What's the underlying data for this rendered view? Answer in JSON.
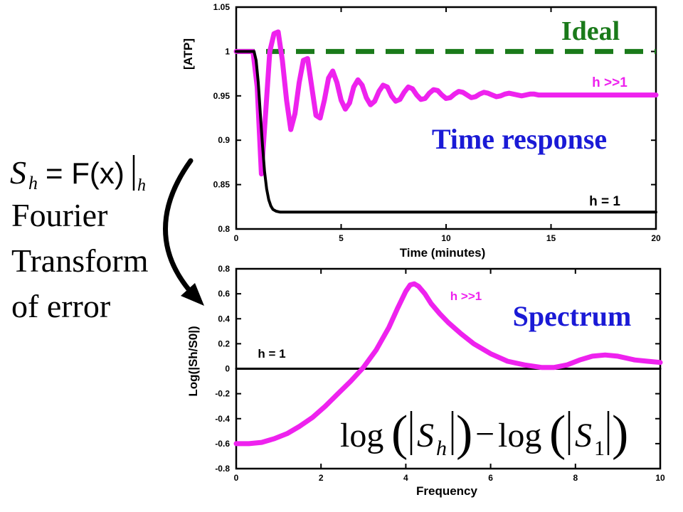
{
  "left_panel": {
    "formula": {
      "lhs": "S",
      "lhs_sub": "h",
      "rhs": "= F(x)",
      "bar_sub": "h"
    },
    "caption_lines": [
      "Fourier",
      "Transform",
      "of error"
    ]
  },
  "chart_data": [
    {
      "type": "line",
      "xlabel": "Time (minutes)",
      "ylabel": "[ATP]",
      "xlim": [
        0,
        20
      ],
      "ylim": [
        0.8,
        1.05
      ],
      "xticks": [
        "0",
        "5",
        "10",
        "15",
        "20"
      ],
      "yticks": [
        "0.8",
        "0.85",
        "0.9",
        "0.95",
        "1",
        "1.05"
      ],
      "grid": false,
      "annotations": {
        "ideal": "Ideal",
        "title": "Time response",
        "high_label": "h >>1",
        "low_label": "h = 1"
      },
      "series": [
        {
          "name": "Ideal",
          "color": "#1a7a1a",
          "style": "dashed",
          "x": [
            0,
            20
          ],
          "y": [
            1,
            1
          ]
        },
        {
          "name": "h >>1",
          "color": "#ee22ee",
          "style": "solid",
          "x": [
            0,
            0.8,
            1.0,
            1.2,
            1.4,
            1.6,
            1.8,
            2.0,
            2.2,
            2.4,
            2.6,
            2.8,
            3.0,
            3.2,
            3.4,
            3.6,
            3.8,
            4.0,
            4.2,
            4.4,
            4.6,
            4.8,
            5.0,
            5.2,
            5.4,
            5.6,
            5.8,
            6.0,
            6.2,
            6.4,
            6.6,
            6.8,
            7.0,
            7.2,
            7.4,
            7.6,
            7.8,
            8.0,
            8.2,
            8.4,
            8.6,
            8.8,
            9.0,
            9.2,
            9.4,
            9.6,
            9.8,
            10.0,
            10.2,
            10.4,
            10.6,
            10.8,
            11.0,
            11.2,
            11.4,
            11.6,
            11.8,
            12.0,
            12.2,
            12.4,
            12.6,
            12.8,
            13.0,
            13.2,
            13.4,
            13.6,
            13.8,
            14.0,
            14.2,
            14.4,
            14.6,
            14.8,
            15.0,
            16.0,
            17.0,
            18.0,
            19.0,
            20.0
          ],
          "y": [
            1.0,
            1.0,
            0.96,
            0.862,
            0.93,
            1.0,
            1.02,
            1.022,
            0.99,
            0.945,
            0.912,
            0.93,
            0.965,
            0.99,
            0.992,
            0.96,
            0.928,
            0.925,
            0.945,
            0.97,
            0.978,
            0.965,
            0.945,
            0.935,
            0.942,
            0.96,
            0.968,
            0.962,
            0.948,
            0.94,
            0.944,
            0.955,
            0.962,
            0.96,
            0.95,
            0.944,
            0.946,
            0.954,
            0.96,
            0.958,
            0.951,
            0.946,
            0.947,
            0.953,
            0.957,
            0.956,
            0.951,
            0.947,
            0.948,
            0.952,
            0.955,
            0.954,
            0.951,
            0.948,
            0.949,
            0.952,
            0.954,
            0.953,
            0.951,
            0.949,
            0.95,
            0.952,
            0.953,
            0.952,
            0.951,
            0.95,
            0.951,
            0.952,
            0.952,
            0.951,
            0.951,
            0.951,
            0.951,
            0.951,
            0.951,
            0.951,
            0.951,
            0.951
          ]
        },
        {
          "name": "h = 1",
          "color": "#000000",
          "style": "solid",
          "x": [
            0,
            0.85,
            0.95,
            1.05,
            1.15,
            1.25,
            1.35,
            1.45,
            1.55,
            1.65,
            1.75,
            1.9,
            2.1,
            2.4,
            3.0,
            20.0
          ],
          "y": [
            1.0,
            1.0,
            0.99,
            0.965,
            0.93,
            0.895,
            0.865,
            0.845,
            0.833,
            0.826,
            0.822,
            0.82,
            0.819,
            0.819,
            0.819,
            0.819
          ]
        }
      ]
    },
    {
      "type": "line",
      "xlabel": "Frequency",
      "ylabel": "Log(|Sh/S0|)",
      "xlim": [
        0,
        10
      ],
      "ylim": [
        -0.8,
        0.8
      ],
      "xticks": [
        "0",
        "2",
        "4",
        "6",
        "8",
        "10"
      ],
      "yticks": [
        "-0.8",
        "-0.6",
        "-0.4",
        "-0.2",
        "0",
        "0.2",
        "0.4",
        "0.6",
        "0.8"
      ],
      "grid": false,
      "annotations": {
        "title": "Spectrum",
        "high_label": "h >>1",
        "low_label": "h = 1"
      },
      "formula": {
        "log1": "log",
        "s1": "S",
        "s1_sub": "h",
        "minus": "−",
        "log2": "log",
        "s2": "S",
        "s2_sub": "1"
      },
      "series": [
        {
          "name": "h = 1",
          "color": "#000000",
          "style": "solid",
          "x": [
            0,
            10
          ],
          "y": [
            0,
            0
          ]
        },
        {
          "name": "h >>1",
          "color": "#ee22ee",
          "style": "solid",
          "x": [
            0,
            0.3,
            0.6,
            0.9,
            1.2,
            1.5,
            1.8,
            2.1,
            2.4,
            2.7,
            3.0,
            3.3,
            3.6,
            3.8,
            4.0,
            4.1,
            4.2,
            4.3,
            4.45,
            4.6,
            4.8,
            5.0,
            5.3,
            5.6,
            6.0,
            6.4,
            6.8,
            7.2,
            7.5,
            7.8,
            8.1,
            8.4,
            8.7,
            9.0,
            9.4,
            9.7,
            10.0
          ],
          "y": [
            -0.6,
            -0.6,
            -0.59,
            -0.56,
            -0.52,
            -0.46,
            -0.39,
            -0.3,
            -0.2,
            -0.1,
            0.01,
            0.15,
            0.33,
            0.48,
            0.62,
            0.67,
            0.68,
            0.66,
            0.6,
            0.52,
            0.44,
            0.37,
            0.28,
            0.2,
            0.12,
            0.06,
            0.03,
            0.01,
            0.01,
            0.03,
            0.07,
            0.1,
            0.11,
            0.1,
            0.07,
            0.06,
            0.05
          ]
        }
      ]
    }
  ]
}
